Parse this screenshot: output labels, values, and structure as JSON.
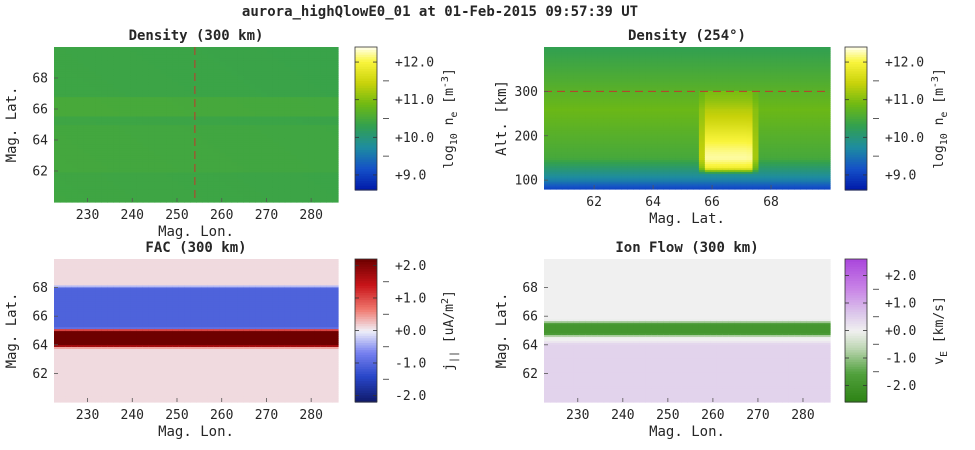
{
  "title": "aurora_highQlowE0_01 at 01-Feb-2015 09:57:39 UT",
  "chart_data": [
    {
      "type": "heatmap",
      "title": "Density (300 km)",
      "xlabel": "Mag. Lon.",
      "ylabel": "Mag. Lat.",
      "xlim": [
        222.5,
        286
      ],
      "ylim": [
        60,
        70
      ],
      "xticks": [
        "230",
        "240",
        "250",
        "260",
        "270",
        "280"
      ],
      "xtick_values": [
        230,
        240,
        250,
        260,
        270,
        280
      ],
      "yticks": [
        "62",
        "64",
        "66",
        "68"
      ],
      "ytick_values": [
        62,
        64,
        66,
        68
      ],
      "colorbar": {
        "label_base": "log",
        "label_sub": "10",
        "label_rest": " n",
        "label_sub2": "e",
        "label_unit_open": " [m",
        "label_sup": "-3",
        "label_unit_close": "]",
        "ticks": [
          "+9.0",
          "+10.0",
          "+11.0",
          "+12.0"
        ],
        "tick_values": [
          9.0,
          10.0,
          11.0,
          12.0
        ],
        "range": [
          8.6,
          12.4
        ],
        "colormap": "plasma-green-yellow"
      },
      "reference_line": {
        "axis": "x",
        "value": 254,
        "style": "dashed",
        "color": "#c0392b"
      },
      "field": {
        "kind": "uniform-bands",
        "base_value": 10.4,
        "bands": [
          [
            65.5,
            66.8,
            10.5
          ],
          [
            62.0,
            65.0,
            10.45
          ]
        ]
      }
    },
    {
      "type": "heatmap",
      "title": "Density (254°)",
      "xlabel": "Mag. Lat.",
      "ylabel": "Alt. [km]",
      "xlim": [
        60.3,
        70
      ],
      "ylim": [
        80,
        400
      ],
      "xticks": [
        "62",
        "64",
        "66",
        "68"
      ],
      "xtick_values": [
        62,
        64,
        66,
        68
      ],
      "yticks": [
        "100",
        "200",
        "300"
      ],
      "ytick_values": [
        100,
        200,
        300
      ],
      "colorbar": {
        "label_base": "log",
        "label_sub": "10",
        "label_rest": " n",
        "label_sub2": "e",
        "label_unit_open": " [m",
        "label_sup": "-3",
        "label_unit_close": "]",
        "ticks": [
          "+9.0",
          "+10.0",
          "+11.0",
          "+12.0"
        ],
        "tick_values": [
          9.0,
          10.0,
          11.0,
          12.0
        ],
        "range": [
          8.6,
          12.4
        ],
        "colormap": "plasma-green-yellow"
      },
      "reference_line": {
        "axis": "y",
        "value": 300,
        "style": "dashed",
        "color": "#c0392b"
      },
      "field": {
        "kind": "altitude-profile",
        "aurora_lat": [
          65.6,
          67.5
        ],
        "aurora_peak_alt": 130
      }
    },
    {
      "type": "heatmap",
      "title": "FAC (300 km)",
      "xlabel": "Mag. Lon.",
      "ylabel": "Mag. Lat.",
      "xlim": [
        222.5,
        286
      ],
      "ylim": [
        60,
        70
      ],
      "xticks": [
        "230",
        "240",
        "250",
        "260",
        "270",
        "280"
      ],
      "xtick_values": [
        230,
        240,
        250,
        260,
        270,
        280
      ],
      "yticks": [
        "62",
        "64",
        "66",
        "68"
      ],
      "ytick_values": [
        62,
        64,
        66,
        68
      ],
      "colorbar": {
        "label_base": "j",
        "label_sub": "||",
        "label_rest": "",
        "label_sub2": "",
        "label_unit_open": " [uA/m",
        "label_sup": "2",
        "label_unit_close": "]",
        "ticks": [
          "-2.0",
          "-1.0",
          "+0.0",
          "+1.0",
          "+2.0"
        ],
        "tick_values": [
          -2.0,
          -1.0,
          0.0,
          1.0,
          2.0
        ],
        "range": [
          -2.2,
          2.2
        ],
        "colormap": "blue-white-red"
      },
      "field": {
        "kind": "lat-bands",
        "bands": [
          [
            65.0,
            68.0,
            -1.05
          ],
          [
            64.0,
            65.0,
            2.2
          ]
        ],
        "background": 0.12,
        "edge_width": 0.25
      }
    },
    {
      "type": "heatmap",
      "title": "Ion Flow (300 km)",
      "xlabel": "Mag. Lon.",
      "ylabel": "Mag. Lat.",
      "xlim": [
        222.5,
        286
      ],
      "ylim": [
        60,
        70
      ],
      "xticks": [
        "230",
        "240",
        "250",
        "260",
        "270",
        "280"
      ],
      "xtick_values": [
        230,
        240,
        250,
        260,
        270,
        280
      ],
      "yticks": [
        "62",
        "64",
        "66",
        "68"
      ],
      "ytick_values": [
        62,
        64,
        66,
        68
      ],
      "colorbar": {
        "label_base": "v",
        "label_sub": "E",
        "label_rest": "",
        "label_sub2": "",
        "label_unit_open": " [km/s]",
        "label_sup": "",
        "label_unit_close": "",
        "ticks": [
          "-2.0",
          "-1.0",
          "+0.0",
          "+1.0",
          "+2.0"
        ],
        "tick_values": [
          -2.0,
          -1.0,
          0.0,
          1.0,
          2.0
        ],
        "range": [
          -2.6,
          2.6
        ],
        "colormap": "green-white-purple"
      },
      "field": {
        "kind": "lat-bands",
        "bands": [
          [
            64.8,
            65.5,
            -1.9
          ]
        ],
        "below": [
          60.0,
          64.2,
          0.45
        ],
        "background": 0.0,
        "edge_width": 0.3
      }
    }
  ]
}
